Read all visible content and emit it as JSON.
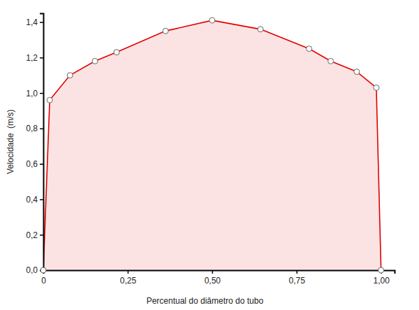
{
  "chart_data": {
    "type": "area",
    "x_label": "Percentual do diâmetro do tubo",
    "y_label": "Velocidade  (m/s)",
    "x": [
      0,
      0.019,
      0.079,
      0.153,
      0.217,
      0.362,
      0.5,
      0.643,
      0.787,
      0.851,
      0.928,
      0.986,
      1.0
    ],
    "values": [
      0,
      0.96,
      1.1,
      1.18,
      1.23,
      1.35,
      1.41,
      1.36,
      1.25,
      1.18,
      1.12,
      1.03,
      0
    ],
    "color": "#e00000",
    "marker": "circle",
    "xlim": [
      0,
      1.04
    ],
    "xticks": [
      0,
      {
        "value": 0.25,
        "label": "0,25"
      },
      {
        "value": 0.5,
        "label": "0,50"
      },
      {
        "value": 0.75,
        "label": "0,75"
      },
      {
        "value": 1.0,
        "label": "1,00"
      }
    ],
    "ylim": [
      0,
      1.45
    ],
    "yticks": [
      {
        "value": 0,
        "label": "0,0"
      },
      {
        "value": 0.2,
        "label": "0,2"
      },
      {
        "value": 0.4,
        "label": "0,4"
      },
      {
        "value": 0.6,
        "label": "0,6"
      },
      {
        "value": 0.8,
        "label": "0,8"
      },
      {
        "value": 1.0,
        "label": "1,0"
      },
      {
        "value": 1.2,
        "label": "1,2"
      },
      {
        "value": 1.4,
        "label": "1,4"
      }
    ],
    "grid": false
  }
}
